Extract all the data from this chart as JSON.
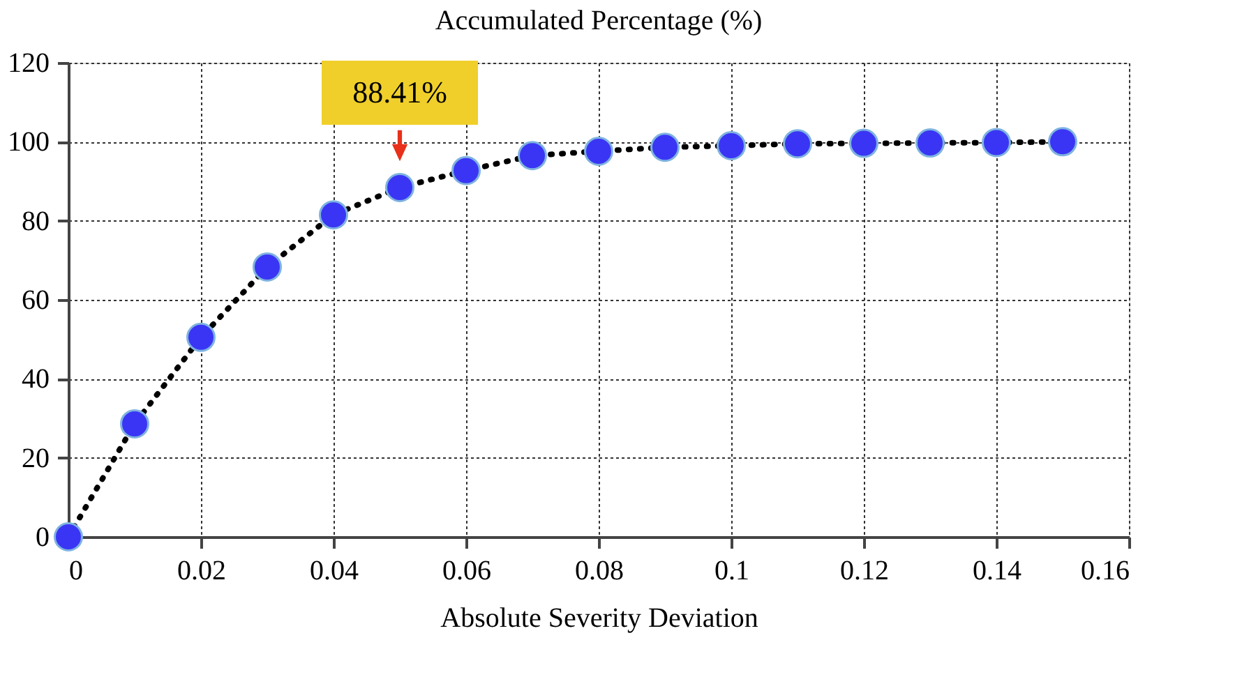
{
  "chart_data": {
    "type": "line",
    "title": "Accumulated Percentage (%)",
    "xlabel": "Absolute Severity Deviation",
    "x": [
      0,
      0.01,
      0.02,
      0.03,
      0.04,
      0.05,
      0.06,
      0.07,
      0.08,
      0.09,
      0.1,
      0.11,
      0.12,
      0.13,
      0.14,
      0.15
    ],
    "series": [
      {
        "color": "#3a35f5",
        "values": [
          0,
          28.6,
          50.5,
          68.3,
          81.5,
          88.41,
          92.7,
          96.5,
          97.6,
          98.6,
          99,
          99.5,
          99.6,
          99.7,
          99.8,
          100
        ]
      }
    ],
    "xlim": [
      0,
      0.16
    ],
    "xticks": [
      0,
      0.02,
      0.04,
      0.06,
      0.08,
      0.1,
      0.12,
      0.14,
      0.16
    ],
    "ylim": [
      0,
      120
    ],
    "yticks": [
      0,
      20,
      40,
      60,
      80,
      100,
      120
    ],
    "grid": true,
    "marker": "circle",
    "line_style": "dotted",
    "annotations": [
      {
        "text": "88.41%",
        "x": 0.05,
        "y": 88.41
      }
    ]
  }
}
